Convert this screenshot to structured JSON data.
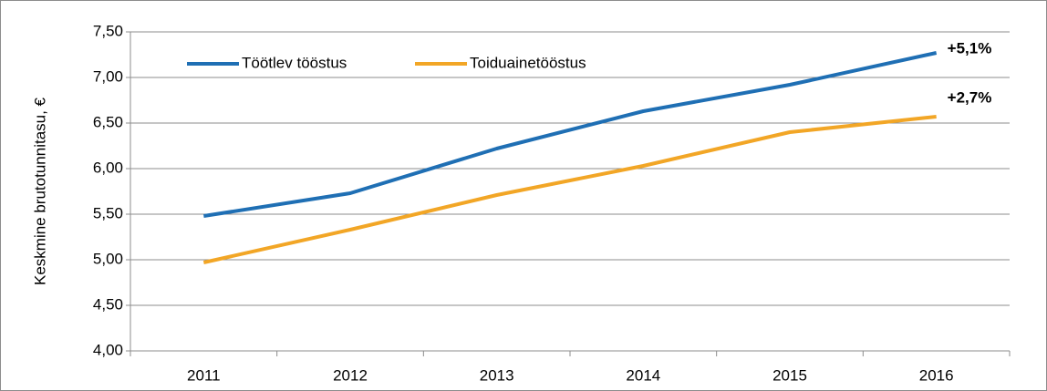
{
  "chart_data": {
    "type": "line",
    "ylabel": "Keskmine brutotunnitasu, €",
    "categories": [
      "2011",
      "2012",
      "2013",
      "2014",
      "2015",
      "2016"
    ],
    "series": [
      {
        "name": "Töötlev tööstus",
        "color": "#1f6fb4",
        "values": [
          5.48,
          5.73,
          6.22,
          6.63,
          6.92,
          7.27
        ]
      },
      {
        "name": "Toiduainetööstus",
        "color": "#f2a626",
        "values": [
          4.97,
          5.33,
          5.71,
          6.03,
          6.4,
          6.57
        ]
      }
    ],
    "annotations": [
      "+5,1%",
      "+2,7%"
    ],
    "ylim": [
      4.0,
      7.5
    ],
    "yticks": [
      {
        "value": 4.0,
        "label": "4,00"
      },
      {
        "value": 4.5,
        "label": "4,50"
      },
      {
        "value": 5.0,
        "label": "5,00"
      },
      {
        "value": 5.5,
        "label": "5,50"
      },
      {
        "value": 6.0,
        "label": "6,00"
      },
      {
        "value": 6.5,
        "label": "6,50"
      },
      {
        "value": 7.0,
        "label": "7,00"
      },
      {
        "value": 7.5,
        "label": "7,50"
      }
    ],
    "grid": true,
    "legend": "top-left"
  }
}
